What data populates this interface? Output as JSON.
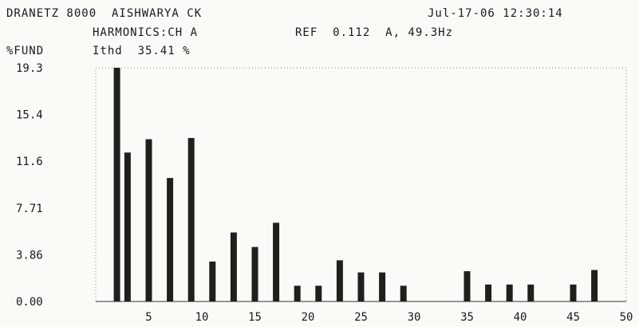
{
  "header": {
    "line1_left": "DRANETZ 8000  AISHWARYA CK",
    "line1_right": "Jul-17-06 12:30:14",
    "line2_left": "HARMONICS:CH A",
    "line2_ref": "REF  0.112  A, 49.3Hz",
    "ylabel": "%FUND",
    "ithd": "Ithd  35.41 %"
  },
  "chart_data": {
    "type": "bar",
    "ylabel": "%FUND",
    "ylim": [
      0,
      19.3
    ],
    "xlim": [
      0,
      50
    ],
    "y_ticks": [
      "19.3",
      "15.4",
      "11.6",
      "7.71",
      "3.86",
      "0.00"
    ],
    "x_ticks": [
      "5",
      "10",
      "15",
      "20",
      "25",
      "30",
      "35",
      "40",
      "45",
      "50"
    ],
    "bars": [
      {
        "h": 2,
        "v": 19.3
      },
      {
        "h": 3,
        "v": 12.3
      },
      {
        "h": 5,
        "v": 13.4
      },
      {
        "h": 7,
        "v": 10.2
      },
      {
        "h": 9,
        "v": 13.5
      },
      {
        "h": 11,
        "v": 3.3
      },
      {
        "h": 13,
        "v": 5.7
      },
      {
        "h": 15,
        "v": 4.5
      },
      {
        "h": 17,
        "v": 6.5
      },
      {
        "h": 19,
        "v": 1.3
      },
      {
        "h": 21,
        "v": 1.3
      },
      {
        "h": 23,
        "v": 3.4
      },
      {
        "h": 25,
        "v": 2.4
      },
      {
        "h": 27,
        "v": 2.4
      },
      {
        "h": 29,
        "v": 1.3
      },
      {
        "h": 35,
        "v": 2.5
      },
      {
        "h": 37,
        "v": 1.4
      },
      {
        "h": 39,
        "v": 1.4
      },
      {
        "h": 41,
        "v": 1.4
      },
      {
        "h": 45,
        "v": 1.4
      },
      {
        "h": 47,
        "v": 2.6
      }
    ]
  }
}
